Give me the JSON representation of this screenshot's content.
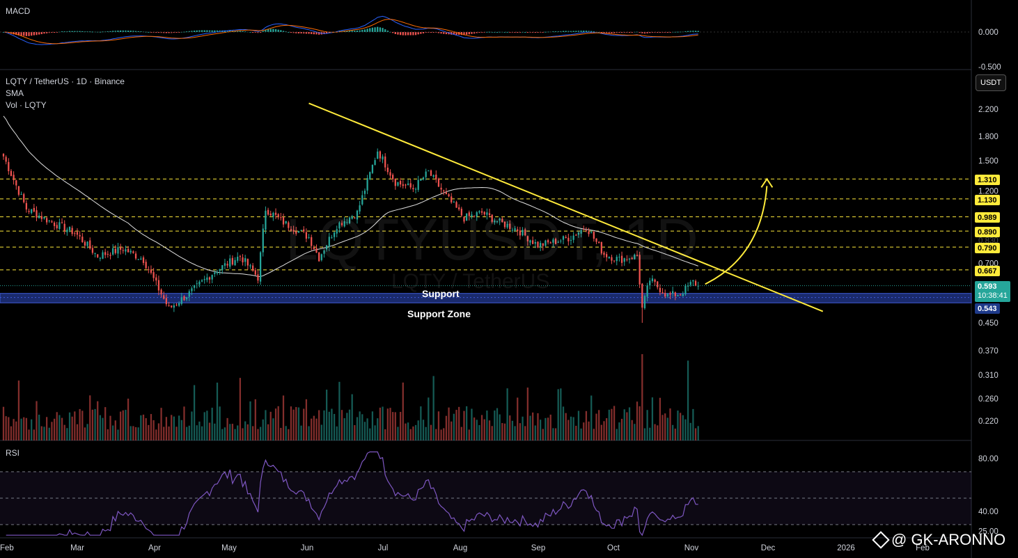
{
  "header": {
    "macd_title": "MACD",
    "pair_title": "LQTY / TetherUS · 1D · Binance",
    "sma_label": "SMA",
    "vol_label": "Vol · LQTY",
    "rsi_title": "RSI",
    "currency_button": "USDT"
  },
  "watermark": {
    "symbol": "LQTYUSDT, 1D",
    "name": "LQTY / TetherUS"
  },
  "annotations": {
    "support": "Support",
    "support_zone": "Support Zone"
  },
  "brand": {
    "handle": "@ GK-ARONNO"
  },
  "colors": {
    "up": "#26a69a",
    "down": "#ef5350",
    "sma": "#e0e0e0",
    "trendline": "#ffeb3b",
    "zone": "#1a2a6c",
    "rsi": "#7e57c2",
    "macd": "#2962ff",
    "signal": "#ff6d00",
    "background": "#000000"
  },
  "price_tags": {
    "current": "0.593",
    "countdown": "10:38:41",
    "support": "0.543",
    "levels": [
      "1.310",
      "1.130",
      "0.989",
      "0.890",
      "0.790",
      "0.667"
    ]
  },
  "price_axis": {
    "ticks": [
      "2.200",
      "1.800",
      "1.500",
      "1.200",
      "0.700",
      "0.450",
      "0.370",
      "0.310",
      "0.260",
      "0.220"
    ],
    "faint_ticks": [
      "1.000",
      "0.830"
    ]
  },
  "macd_axis": {
    "ticks": [
      "0.000",
      "-0.500"
    ]
  },
  "rsi_axis": {
    "ticks": [
      "80.00",
      "40.00",
      "25.00"
    ]
  },
  "time_axis": {
    "labels": [
      "Feb",
      "Mar",
      "Apr",
      "May",
      "Jun",
      "Jul",
      "Aug",
      "Sep",
      "Oct",
      "Nov",
      "Dec",
      "2026",
      "Feb"
    ]
  },
  "chart_data": {
    "type": "candlestick",
    "symbol": "LQTYUSDT",
    "interval": "1D",
    "price_scale": "log",
    "anchors": [
      [
        "Feb 1",
        1.55
      ],
      [
        "Feb 10",
        1.05
      ],
      [
        "Feb 20",
        0.95
      ],
      [
        "Mar 1",
        0.88
      ],
      [
        "Mar 10",
        0.74
      ],
      [
        "Mar 20",
        0.78
      ],
      [
        "Mar 28",
        0.72
      ],
      [
        "Apr 7",
        0.5
      ],
      [
        "Apr 15",
        0.56
      ],
      [
        "Apr 25",
        0.66
      ],
      [
        "May 5",
        0.74
      ],
      [
        "May 12",
        0.63
      ],
      [
        "May 15",
        1.05
      ],
      [
        "May 22",
        0.95
      ],
      [
        "Jun 1",
        0.85
      ],
      [
        "Jun 5",
        0.73
      ],
      [
        "Jun 12",
        0.93
      ],
      [
        "Jun 20",
        1.02
      ],
      [
        "Jun 28",
        1.62
      ],
      [
        "Jul 5",
        1.28
      ],
      [
        "Jul 12",
        1.22
      ],
      [
        "Jul 18",
        1.38
      ],
      [
        "Jul 25",
        1.15
      ],
      [
        "Aug 1",
        0.98
      ],
      [
        "Aug 8",
        1.02
      ],
      [
        "Aug 15",
        0.95
      ],
      [
        "Aug 22",
        0.9
      ],
      [
        "Aug 30",
        0.8
      ],
      [
        "Sep 5",
        0.82
      ],
      [
        "Sep 12",
        0.85
      ],
      [
        "Sep 18",
        0.92
      ],
      [
        "Sep 25",
        0.75
      ],
      [
        "Oct 1",
        0.72
      ],
      [
        "Oct 8",
        0.74
      ],
      [
        "Oct 10",
        0.5
      ],
      [
        "Oct 13",
        0.62
      ],
      [
        "Oct 20",
        0.55
      ],
      [
        "Oct 25",
        0.56
      ],
      [
        "Oct 30",
        0.61
      ],
      [
        "Nov 1",
        0.593
      ]
    ],
    "current_price": 0.593,
    "support": 0.543,
    "support_zone": [
      0.522,
      0.56
    ],
    "resistance_levels": [
      1.31,
      1.13,
      0.989,
      0.89,
      0.79,
      0.667
    ],
    "trendline": [
      [
        "Jun 1",
        2.3
      ],
      [
        "Dec 20",
        0.49
      ]
    ],
    "projection_target": 1.31,
    "rsi_levels": [
      70,
      50,
      30
    ],
    "rsi_ylim": [
      20,
      90
    ],
    "macd_ylim": [
      -0.55,
      0.2
    ],
    "x_range": [
      "Feb 1",
      "Feb 28"
    ]
  }
}
